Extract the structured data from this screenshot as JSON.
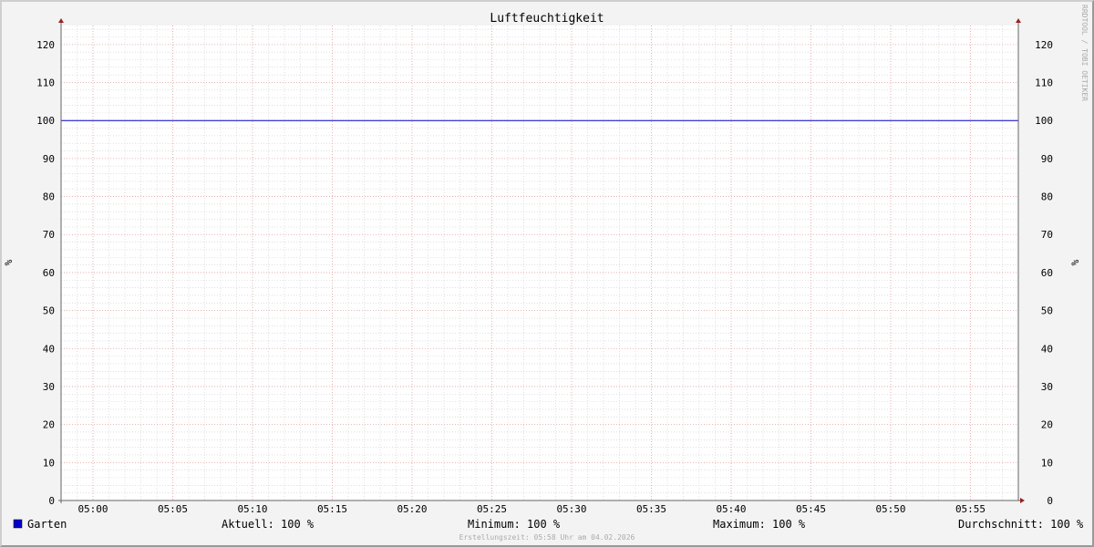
{
  "chart_data": {
    "type": "line",
    "title": "Luftfeuchtigkeit",
    "ylabel": "%",
    "ylabel_right": "%",
    "ylim": [
      0,
      125
    ],
    "yticks": [
      0,
      10,
      20,
      30,
      40,
      50,
      60,
      70,
      80,
      90,
      100,
      110,
      120
    ],
    "xlim": [
      "04:58",
      "05:58"
    ],
    "xticks": [
      "05:00",
      "05:05",
      "05:10",
      "05:15",
      "05:20",
      "05:25",
      "05:30",
      "05:35",
      "05:40",
      "05:45",
      "05:50",
      "05:55"
    ],
    "grid": true,
    "series": [
      {
        "name": "Garten",
        "color": "#0000cc",
        "x": [
          "04:58",
          "05:58"
        ],
        "values": [
          100,
          100
        ]
      }
    ],
    "legend": {
      "swatch_color": "#0000cc",
      "name": "Garten",
      "aktuell": "Aktuell: 100 %",
      "minimum": "Minimum: 100 %",
      "maximum": "Maximum: 100 %",
      "durchschnitt": "Durchschnitt: 100 %"
    },
    "watermark": "RRDTOOL / TOBI OETIKER",
    "footer": "Erstellungszeit: 05:58 Uhr am 04.02.2026",
    "colors": {
      "background": "#f3f3f3",
      "plot": "#ffffff",
      "grid_minor": "#cccccc",
      "grid_major": "#e0a0a0",
      "axis": "#666666",
      "arrow": "#992222"
    }
  }
}
